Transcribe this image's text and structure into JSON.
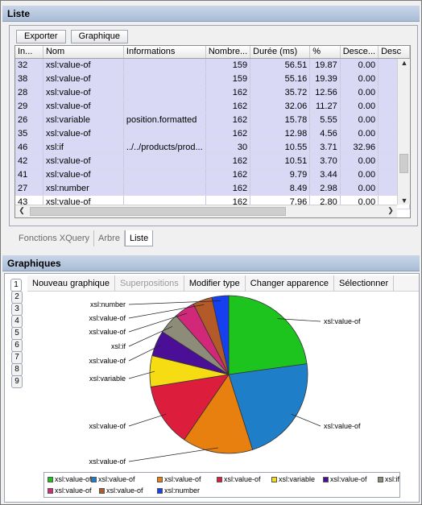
{
  "liste": {
    "title": "Liste",
    "toolbar": {
      "export": "Exporter",
      "graph": "Graphique"
    },
    "columns": [
      "In...",
      "Nom",
      "Informations",
      "Nombre...",
      "Durée (ms)",
      "%",
      "Desce...",
      "Desc"
    ],
    "rows": [
      [
        "32",
        "xsl:value-of",
        "",
        "159",
        "56.51",
        "19.87",
        "0.00"
      ],
      [
        "38",
        "xsl:value-of",
        "",
        "159",
        "55.16",
        "19.39",
        "0.00"
      ],
      [
        "28",
        "xsl:value-of",
        "",
        "162",
        "35.72",
        "12.56",
        "0.00"
      ],
      [
        "29",
        "xsl:value-of",
        "",
        "162",
        "32.06",
        "11.27",
        "0.00"
      ],
      [
        "26",
        "xsl:variable",
        "position.formatted",
        "162",
        "15.78",
        "5.55",
        "0.00"
      ],
      [
        "35",
        "xsl:value-of",
        "",
        "162",
        "12.98",
        "4.56",
        "0.00"
      ],
      [
        "46",
        "xsl:if",
        "../../products/prod...",
        "30",
        "10.55",
        "3.71",
        "32.96"
      ],
      [
        "42",
        "xsl:value-of",
        "",
        "162",
        "10.51",
        "3.70",
        "0.00"
      ],
      [
        "41",
        "xsl:value-of",
        "",
        "162",
        "9.79",
        "3.44",
        "0.00"
      ],
      [
        "27",
        "xsl:number",
        "",
        "162",
        "8.49",
        "2.98",
        "0.00"
      ],
      [
        "43",
        "xsl:value-of",
        "",
        "162",
        "7.96",
        "2.80",
        "0.00"
      ]
    ],
    "tabs": [
      "Fonctions XQuery",
      "Arbre",
      "Liste"
    ],
    "active_tab": "Liste"
  },
  "graphiques": {
    "title": "Graphiques",
    "toolbar": [
      "Nouveau graphique",
      "Superpositions",
      "Modifier type",
      "Changer apparence",
      "Sélectionner"
    ],
    "side_tabs": [
      "1",
      "2",
      "3",
      "4",
      "5",
      "6",
      "7",
      "8",
      "9"
    ],
    "active_side_tab": "1"
  },
  "chart_data": {
    "type": "pie",
    "categories": [
      "xsl:value-of",
      "xsl:value-of",
      "xsl:value-of",
      "xsl:value-of",
      "xsl:variable",
      "xsl:value-of",
      "xsl:if",
      "xsl:value-of",
      "xsl:value-of",
      "xsl:number"
    ],
    "values": [
      56.51,
      55.16,
      35.72,
      32.06,
      15.78,
      12.98,
      10.55,
      10.51,
      9.79,
      8.49
    ],
    "colors": [
      "#1ec41e",
      "#1e7fc8",
      "#e8800f",
      "#dc1e3c",
      "#f6dc12",
      "#4a0f96",
      "#8c8c78",
      "#d2287a",
      "#b45a28",
      "#1440f0"
    ],
    "legend": [
      "xsl:value-of",
      "xsl:value-of",
      "xsl:value-of",
      "xsl:value-of",
      "xsl:variable",
      "xsl:value-of",
      "xsl:if",
      "xsl:value-of",
      "xsl:value-of",
      "xsl:number"
    ],
    "legend_position": "bottom"
  }
}
